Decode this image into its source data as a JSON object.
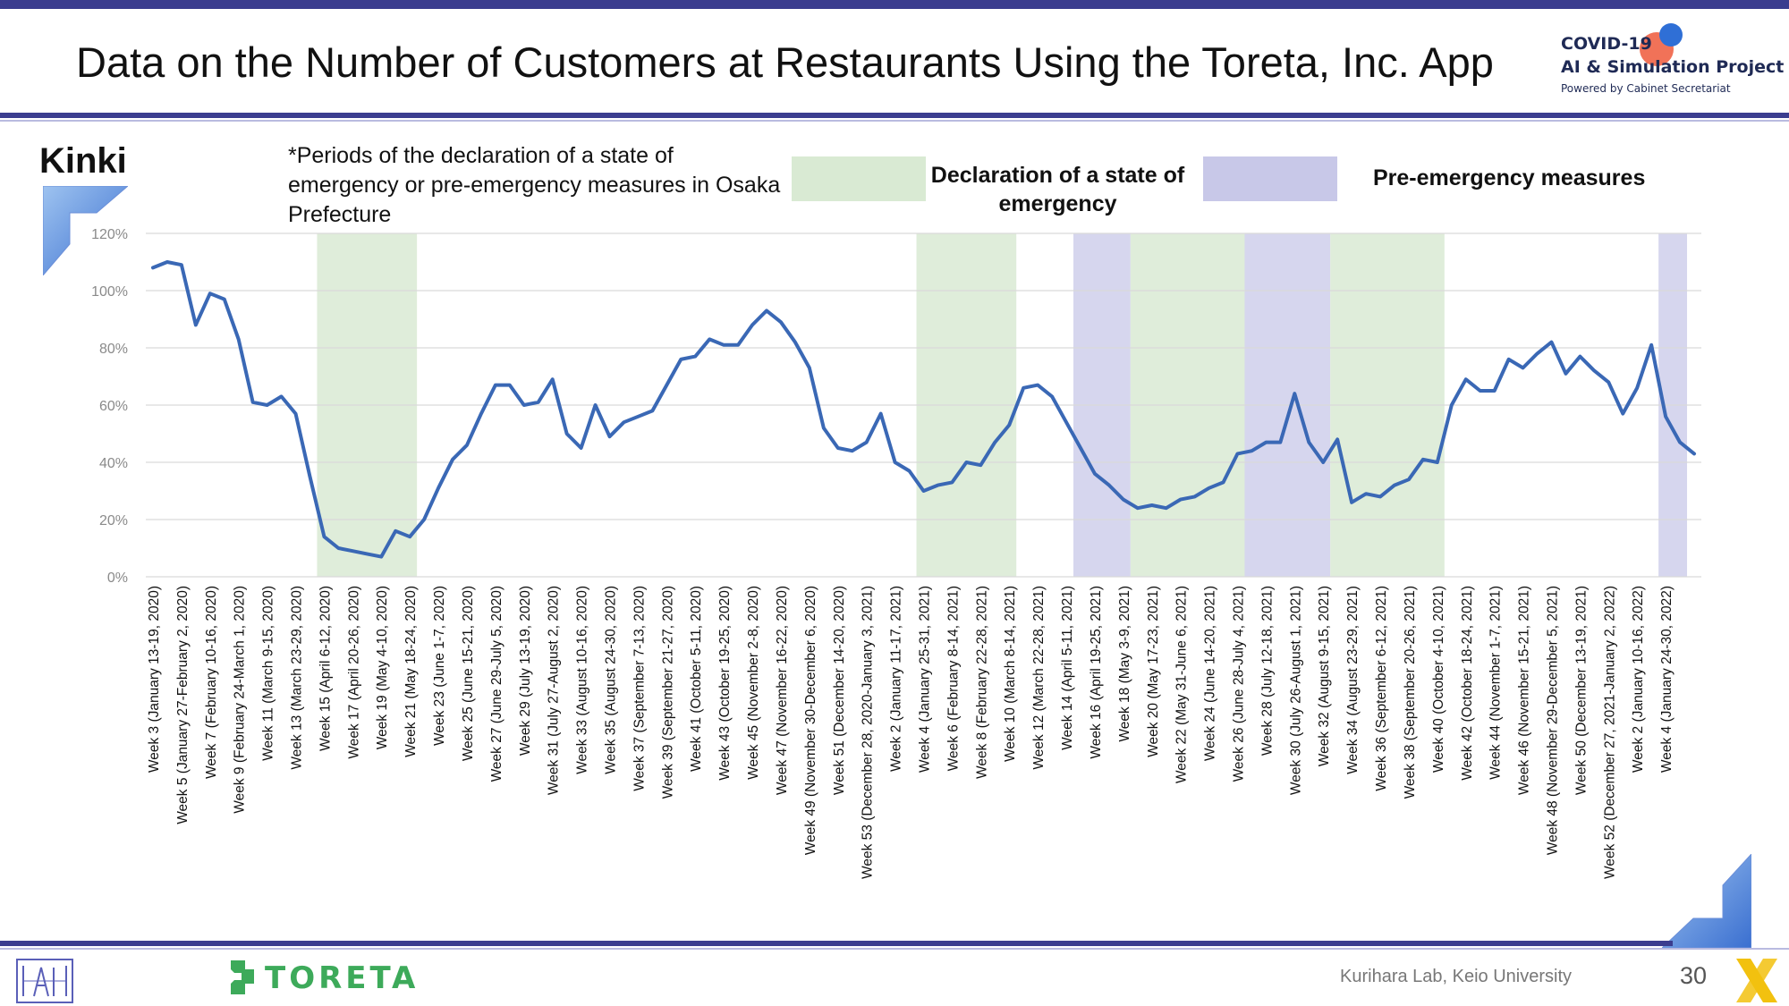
{
  "header": {
    "title": "Data on the Number of Customers at Restaurants Using the Toreta, Inc. App",
    "logo_line1": "COVID-19",
    "logo_line2": "AI & Simulation Project",
    "logo_line3": "Powered by Cabinet Secretariat"
  },
  "region": "Kinki",
  "note": "*Periods of the declaration of a state of emergency or pre-emergency measures in Osaka Prefecture",
  "legend": {
    "emergency_label": "Declaration of a state of emergency",
    "pre_emergency_label": "Pre-emergency measures",
    "emergency_color": "#d9ead3",
    "pre_emergency_color": "#c8c8e8"
  },
  "footer": {
    "brand": "TORETA",
    "credit": "Kurihara Lab, Keio University",
    "page": "30"
  },
  "chart_data": {
    "type": "line",
    "title": "",
    "xlabel": "",
    "ylabel": "",
    "ylim": [
      0,
      1.2
    ],
    "yticks": [
      "0%",
      "20%",
      "40%",
      "60%",
      "80%",
      "100%",
      "120%"
    ],
    "grid": true,
    "line_color": "#3a68b5",
    "x_tick_labels": [
      "Week 3 (January 13-19, 2020)",
      "Week 5 (January 27-February 2, 2020)",
      "Week 7 (February 10-16, 2020)",
      "Week 9 (February 24-March 1, 2020)",
      "Week 11 (March 9-15, 2020)",
      "Week 13 (March 23-29, 2020)",
      "Week 15 (April 6-12, 2020)",
      "Week 17 (April 20-26, 2020)",
      "Week 19 (May 4-10, 2020)",
      "Week 21 (May 18-24, 2020)",
      "Week 23 (June 1-7, 2020)",
      "Week 25 (June 15-21, 2020)",
      "Week 27 (June 29-July 5, 2020)",
      "Week 29 (July 13-19, 2020)",
      "Week 31 (July 27-August 2, 2020)",
      "Week 33 (August 10-16, 2020)",
      "Week 35 (August 24-30, 2020)",
      "Week 37 (September 7-13, 2020)",
      "Week 39 (September 21-27, 2020)",
      "Week 41 (October 5-11, 2020)",
      "Week 43 (October 19-25, 2020)",
      "Week 45 (November 2-8, 2020)",
      "Week 47 (November 16-22, 2020)",
      "Week 49 (November 30-December 6, 2020)",
      "Week 51 (December 14-20, 2020)",
      "Week 53 (December 28, 2020-January 3, 2021)",
      "Week 2 (January 11-17, 2021)",
      "Week 4 (January 25-31, 2021)",
      "Week 6 (February 8-14, 2021)",
      "Week 8 (February 22-28, 2021)",
      "Week 10 (March 8-14, 2021)",
      "Week 12 (March 22-28, 2021)",
      "Week 14 (April 5-11, 2021)",
      "Week 16 (April 19-25, 2021)",
      "Week 18 (May 3-9, 2021)",
      "Week 20 (May 17-23, 2021)",
      "Week 22 (May 31-June 6, 2021)",
      "Week 24 (June 14-20, 2021)",
      "Week 26 (June 28-July 4, 2021)",
      "Week 28 (July 12-18, 2021)",
      "Week 30 (July 26-August 1, 2021)",
      "Week 32 (August 9-15, 2021)",
      "Week 34 (August 23-29, 2021)",
      "Week 36 (September 6-12, 2021)",
      "Week 38 (September 20-26, 2021)",
      "Week 40 (October 4-10, 2021)",
      "Week 42 (October 18-24, 2021)",
      "Week 44 (November 1-7, 2021)",
      "Week 46 (November 15-21, 2021)",
      "Week 48 (November 29-December 5, 2021)",
      "Week 50 (December 13-19, 2021)",
      "Week 52 (December 27, 2021-January 2, 2022)",
      "Week 2 (January 10-16, 2022)",
      "Week 4 (January 24-30, 2022)"
    ],
    "series": [
      {
        "values": [
          1.08,
          1.1,
          1.09,
          0.88,
          0.99,
          0.97,
          0.83,
          0.61,
          0.6,
          0.63,
          0.57,
          0.35,
          0.14,
          0.1,
          0.09,
          0.08,
          0.07,
          0.16,
          0.14,
          0.2,
          0.31,
          0.41,
          0.46,
          0.57,
          0.67,
          0.67,
          0.6,
          0.61,
          0.69,
          0.5,
          0.45,
          0.6,
          0.49,
          0.54,
          0.56,
          0.58,
          0.67,
          0.76,
          0.77,
          0.83,
          0.81,
          0.81,
          0.88,
          0.93,
          0.89,
          0.82,
          0.73,
          0.52,
          0.45,
          0.44,
          0.47,
          0.57,
          0.4,
          0.37,
          0.3,
          0.32,
          0.33,
          0.4,
          0.39,
          0.47,
          0.53,
          0.66,
          0.67,
          0.63,
          0.54,
          0.45,
          0.36,
          0.32,
          0.27,
          0.24,
          0.25,
          0.24,
          0.27,
          0.28,
          0.31,
          0.33,
          0.43,
          0.44,
          0.47,
          0.47,
          0.64,
          0.47,
          0.4,
          0.48,
          0.26,
          0.29,
          0.28,
          0.32,
          0.34,
          0.41,
          0.4,
          0.6,
          0.69,
          0.65,
          0.65,
          0.76,
          0.73,
          0.78,
          0.82,
          0.71,
          0.77,
          0.72,
          0.68,
          0.57,
          0.66,
          0.81,
          0.56,
          0.47,
          0.43
        ]
      }
    ],
    "shaded_periods": [
      {
        "kind": "emergency",
        "start_index": 12,
        "end_index": 19
      },
      {
        "kind": "emergency",
        "start_index": 54,
        "end_index": 61
      },
      {
        "kind": "pre_emergency",
        "start_index": 65,
        "end_index": 69
      },
      {
        "kind": "emergency",
        "start_index": 69,
        "end_index": 77
      },
      {
        "kind": "pre_emergency",
        "start_index": 77,
        "end_index": 83
      },
      {
        "kind": "emergency",
        "start_index": 83,
        "end_index": 91
      },
      {
        "kind": "pre_emergency",
        "start_index": 106,
        "end_index": 108
      }
    ]
  }
}
